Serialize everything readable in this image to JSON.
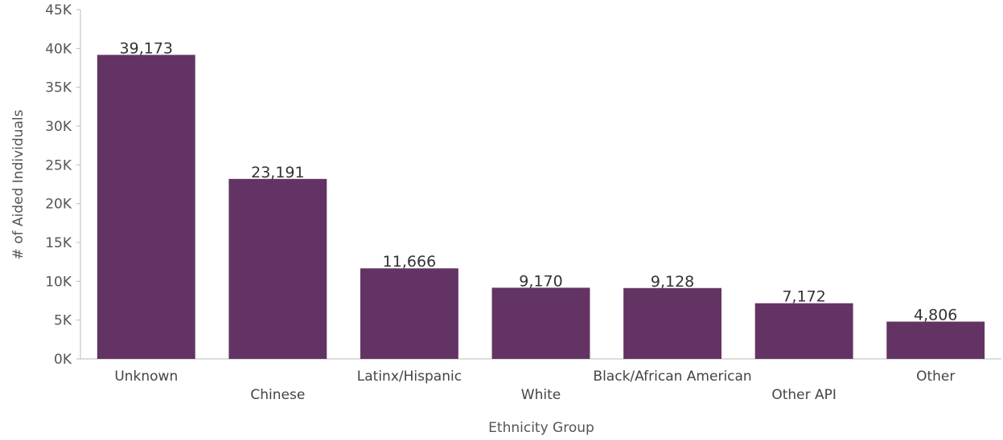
{
  "chart_data": {
    "type": "bar",
    "title": "",
    "xlabel": "Ethnicity Group",
    "ylabel": "# of Aided Individuals",
    "categories": [
      "Unknown",
      "Chinese",
      "Latinx/Hispanic",
      "White",
      "Black/African American",
      "Other API",
      "Other"
    ],
    "values": [
      39173,
      23191,
      11666,
      9170,
      9128,
      7172,
      4806
    ],
    "data_labels": [
      "39,173",
      "23,191",
      "11,666",
      "9,170",
      "9,128",
      "7,172",
      "4,806"
    ],
    "ylim": [
      0,
      45000
    ],
    "y_ticks": [
      0,
      5000,
      10000,
      15000,
      20000,
      25000,
      30000,
      35000,
      40000,
      45000
    ],
    "y_tick_labels": [
      "0K",
      "5K",
      "10K",
      "15K",
      "20K",
      "25K",
      "30K",
      "35K",
      "40K",
      "45K"
    ],
    "grid": false,
    "legend": "none",
    "bar_color": "#633463",
    "axis_color": "#bbbbbb"
  }
}
